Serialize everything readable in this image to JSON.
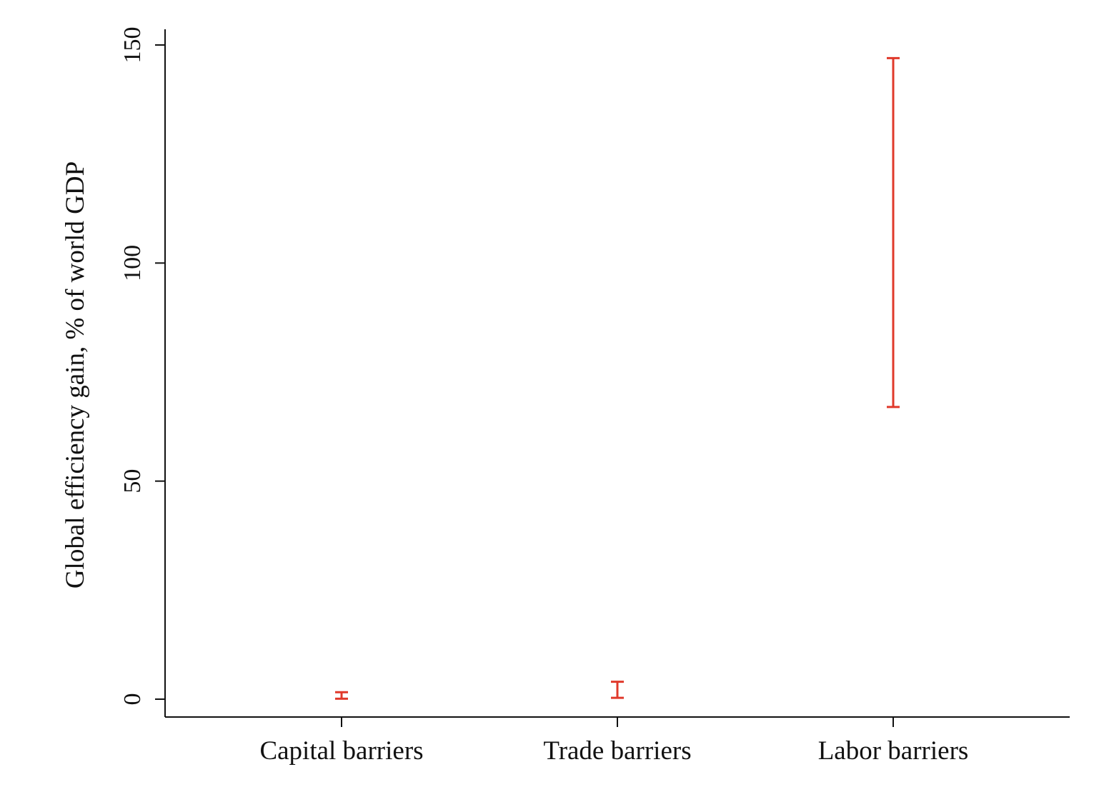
{
  "chart_data": {
    "type": "range",
    "categories": [
      "Capital barriers",
      "Trade barriers",
      "Labor barriers"
    ],
    "series": [
      {
        "low": [
          0.1,
          0.3,
          67.0
        ],
        "high": [
          1.6,
          4.0,
          147.0
        ]
      }
    ],
    "xlabel": "",
    "ylabel": "Global efficiency gain, % of world GDP",
    "ylim": [
      -4,
      154
    ],
    "yticks": [
      0,
      50,
      100,
      150
    ],
    "ytick_labels": [
      "0",
      "50",
      "100",
      "150"
    ],
    "grid": false,
    "legend": "none",
    "colors": {
      "bar": "#e0392b",
      "axis": "#111111"
    }
  }
}
